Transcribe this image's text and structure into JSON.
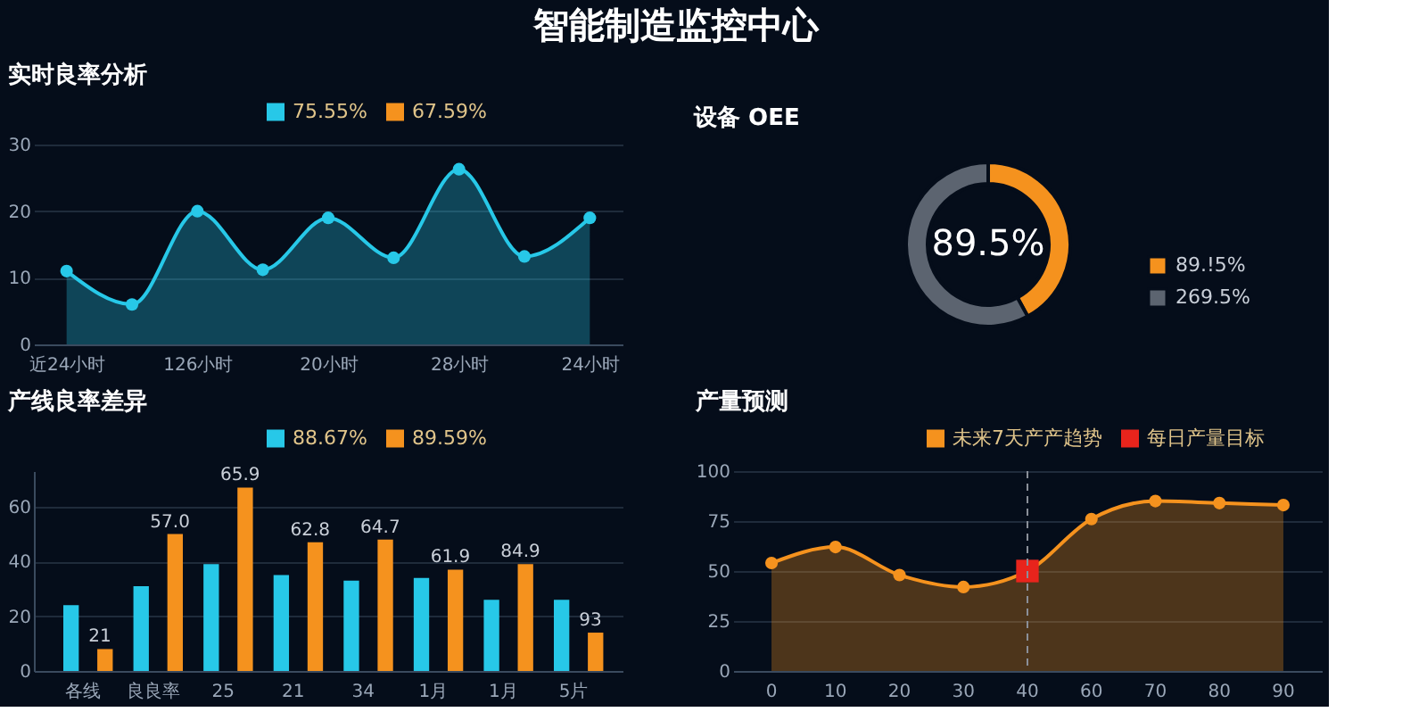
{
  "chart_data": [
    {
      "type": "other",
      "title": "智能制造监控中心"
    },
    {
      "type": "area",
      "title": "实时良率分析",
      "categories": [
        "近24小时",
        null,
        "126小时",
        null,
        "20小时",
        null,
        "28小时",
        null,
        "24小时"
      ],
      "series": [
        {
          "name": "75.55%",
          "color": "#27c8e8",
          "values": [
            11,
            6,
            20,
            11.2,
            19,
            13,
            26.3,
            13.2,
            19
          ]
        },
        {
          "name": "67.59%",
          "color": "#f5921e",
          "values": [
            null,
            null,
            null,
            null,
            null,
            null,
            null,
            null,
            null
          ]
        }
      ],
      "ylim": [
        0,
        30
      ],
      "yticks": [
        0,
        10,
        20,
        30
      ],
      "grid": "y",
      "legend": "top right",
      "marker": "circle"
    },
    {
      "type": "donut",
      "title": "设备 OEE",
      "categories": [
        "89.!5%",
        "269.5%"
      ],
      "values": [
        42,
        58
      ],
      "colors": [
        "#f5921e",
        "#5c6470"
      ],
      "annotations": [
        "89.5%"
      ],
      "legend": "bottom right"
    },
    {
      "type": "bar",
      "title": "产线良率差异",
      "categories": [
        "各线",
        "良良率",
        "25",
        "21",
        "34",
        "1月",
        "1月",
        "5片"
      ],
      "series": [
        {
          "name": "88.67%",
          "color": "#27c8e8",
          "values": [
            24,
            31,
            39,
            35,
            33,
            34,
            26,
            26
          ]
        },
        {
          "name": "89.59%",
          "color": "#f5921e",
          "values": [
            8,
            50,
            67,
            47,
            48,
            37,
            39,
            14
          ]
        }
      ],
      "annotations": [
        "21",
        "57.0",
        "65.9",
        "62.8",
        "64.7",
        "61.9",
        "84.9",
        "93"
      ],
      "ylim": [
        0,
        73
      ],
      "yticks": [
        0,
        20,
        40,
        60
      ],
      "grid": "y",
      "legend": "top right"
    },
    {
      "type": "area",
      "title": "产量预测",
      "categories": [
        "0",
        "10",
        "20",
        "30",
        "40",
        "60",
        "70",
        "80",
        "90"
      ],
      "series": [
        {
          "name": "未来7天产产趋势",
          "color": "#f5921e",
          "values": [
            54,
            62,
            48,
            42,
            50,
            76,
            85,
            84,
            83
          ]
        },
        {
          "name": "每日产量目标",
          "color": "#e8241c",
          "type": "scatter",
          "marker": "square",
          "values": [
            null,
            null,
            null,
            null,
            50,
            null,
            null,
            null,
            null
          ]
        }
      ],
      "ylim": [
        0,
        100
      ],
      "yticks": [
        0,
        25,
        50,
        75,
        100
      ],
      "grid": "y",
      "legend": "top right",
      "marker": "circle",
      "ref_lines": [
        {
          "axis": "x",
          "value": "40",
          "line_style": "dashed",
          "color": "#8a8f99"
        }
      ]
    }
  ]
}
